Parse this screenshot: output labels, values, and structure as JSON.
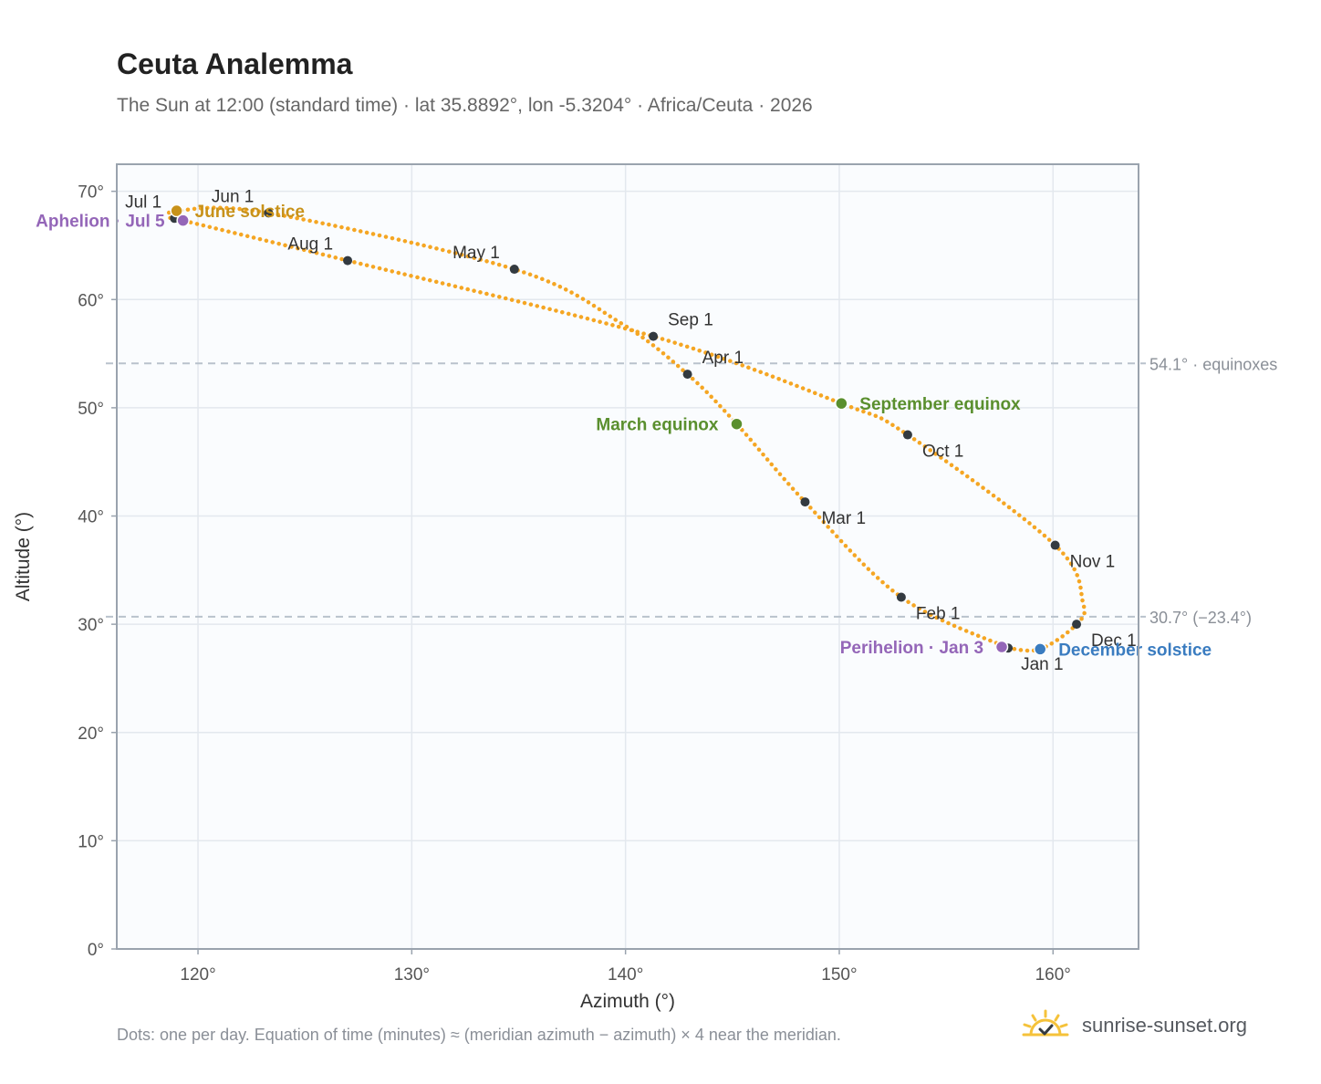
{
  "title": "Ceuta Analemma",
  "subtitle": "The Sun at 12:00 (standard time) · lat 35.8892°, lon -5.3204° · Africa/Ceuta · 2026",
  "footnote": "Dots: one per day. Equation of time (minutes) ≈ (meridian azimuth − azimuth) × 4 near the meridian.",
  "brand": {
    "name": "sunrise-sunset.org",
    "icon": "sunrise-logo-icon"
  },
  "colors": {
    "curve": "#f5a623",
    "month_dot": "#333a40",
    "equinox": "#5a8f2e",
    "june_solstice": "#c8921a",
    "december_solstice": "#3a7cc0",
    "apsis": "#9466b8",
    "reference_line": "#b9c2cc",
    "grid": "#e3e8ee",
    "plot_bg": "#fafcfe",
    "frame": "#9aa3ae"
  },
  "chart_data": {
    "type": "scatter",
    "xlabel": "Azimuth (°)",
    "ylabel": "Altitude (°)",
    "xlim": [
      116.2,
      164.0
    ],
    "ylim": [
      0,
      72.5
    ],
    "x_ticks": [
      {
        "value": 120,
        "label": "120°"
      },
      {
        "value": 130,
        "label": "130°"
      },
      {
        "value": 140,
        "label": "140°"
      },
      {
        "value": 150,
        "label": "150°"
      },
      {
        "value": 160,
        "label": "160°"
      }
    ],
    "y_ticks": [
      {
        "value": 0,
        "label": "0°"
      },
      {
        "value": 10,
        "label": "10°"
      },
      {
        "value": 20,
        "label": "20°"
      },
      {
        "value": 30,
        "label": "30°"
      },
      {
        "value": 40,
        "label": "40°"
      },
      {
        "value": 50,
        "label": "50°"
      },
      {
        "value": 60,
        "label": "60°"
      },
      {
        "value": 70,
        "label": "70°"
      }
    ],
    "grid": true,
    "reference_lines": [
      {
        "y": 54.1,
        "label": "54.1° · equinoxes"
      },
      {
        "y": 30.7,
        "label": "30.7° (−23.4°)"
      }
    ],
    "months": [
      {
        "label": "Jan 1",
        "az": 157.9,
        "alt": 27.8,
        "anchor": "start",
        "dx": 14,
        "dy": 24
      },
      {
        "label": "Feb 1",
        "az": 152.9,
        "alt": 32.5,
        "anchor": "start",
        "dx": 16,
        "dy": 24
      },
      {
        "label": "Mar 1",
        "az": 148.4,
        "alt": 41.3,
        "anchor": "start",
        "dx": 18,
        "dy": 24
      },
      {
        "label": "Apr 1",
        "az": 142.9,
        "alt": 53.1,
        "anchor": "start",
        "dx": 16,
        "dy": -12
      },
      {
        "label": "May 1",
        "az": 134.8,
        "alt": 62.8,
        "anchor": "end",
        "dx": -16,
        "dy": -12
      },
      {
        "label": "Jun 1",
        "az": 123.3,
        "alt": 68.0,
        "anchor": "end",
        "dx": -16,
        "dy": -12
      },
      {
        "label": "Jul 1",
        "az": 118.9,
        "alt": 67.5,
        "anchor": "end",
        "dx": -14,
        "dy": -12
      },
      {
        "label": "Aug 1",
        "az": 127.0,
        "alt": 63.6,
        "anchor": "end",
        "dx": -16,
        "dy": -12
      },
      {
        "label": "Sep 1",
        "az": 141.3,
        "alt": 56.6,
        "anchor": "start",
        "dx": 16,
        "dy": -12
      },
      {
        "label": "Oct 1",
        "az": 153.2,
        "alt": 47.5,
        "anchor": "start",
        "dx": 16,
        "dy": 24
      },
      {
        "label": "Nov 1",
        "az": 160.1,
        "alt": 37.3,
        "anchor": "start",
        "dx": 16,
        "dy": 24
      },
      {
        "label": "Dec 1",
        "az": 161.1,
        "alt": 30.0,
        "anchor": "start",
        "dx": 16,
        "dy": 24
      }
    ],
    "events": [
      {
        "label": "June solstice",
        "az": 119.0,
        "alt": 68.2,
        "color_key": "june_solstice",
        "anchor": "start",
        "dx": 20
      },
      {
        "label": "Aphelion · Jul 5",
        "az": 119.3,
        "alt": 67.3,
        "color_key": "apsis",
        "anchor": "end",
        "dx": -20
      },
      {
        "label": "March equinox",
        "az": 145.2,
        "alt": 48.5,
        "color_key": "equinox",
        "anchor": "end",
        "dx": -20
      },
      {
        "label": "September equinox",
        "az": 150.1,
        "alt": 50.4,
        "color_key": "equinox",
        "anchor": "start",
        "dx": 20
      },
      {
        "label": "Perihelion · Jan 3",
        "az": 157.6,
        "alt": 27.9,
        "color_key": "apsis",
        "anchor": "end",
        "dx": -20
      },
      {
        "label": "December solstice",
        "az": 159.4,
        "alt": 27.7,
        "color_key": "december_solstice",
        "anchor": "start",
        "dx": 20
      }
    ],
    "path": [
      [
        157.9,
        27.8
      ],
      [
        152.9,
        32.5
      ],
      [
        148.4,
        41.3
      ],
      [
        145.2,
        48.5
      ],
      [
        142.9,
        53.1
      ],
      [
        139.8,
        57.8
      ],
      [
        134.8,
        62.8
      ],
      [
        123.3,
        68.0
      ],
      [
        119.0,
        68.2
      ],
      [
        118.9,
        67.5
      ],
      [
        119.3,
        67.3
      ],
      [
        127.0,
        63.6
      ],
      [
        141.3,
        56.6
      ],
      [
        150.1,
        50.4
      ],
      [
        153.2,
        47.5
      ],
      [
        160.1,
        37.3
      ],
      [
        161.4,
        32.0
      ],
      [
        161.1,
        30.0
      ],
      [
        159.4,
        27.7
      ],
      [
        157.9,
        27.8
      ]
    ]
  }
}
